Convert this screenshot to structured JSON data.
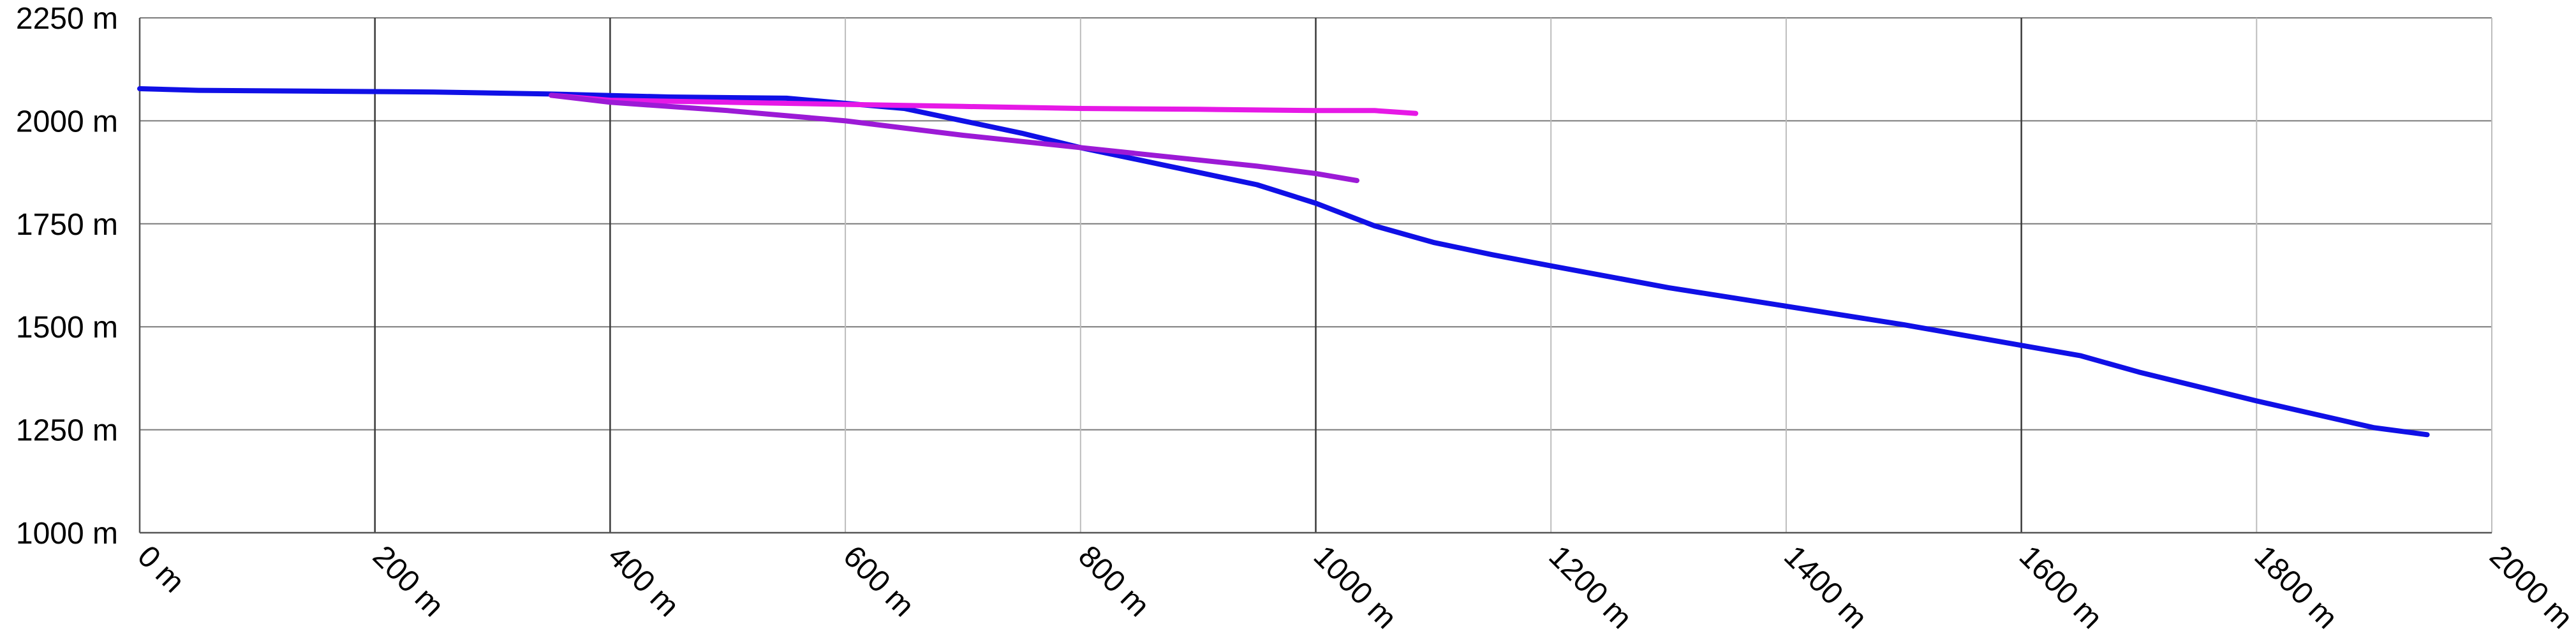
{
  "chart_data": {
    "type": "line",
    "title": "",
    "xlabel": "",
    "ylabel": "",
    "xlim": [
      0,
      2000
    ],
    "ylim": [
      1000,
      2250
    ],
    "x_ticks": [
      0,
      200,
      400,
      600,
      800,
      1000,
      1200,
      1400,
      1600,
      1800,
      2000
    ],
    "x_tick_labels": [
      "0 m",
      "200 m",
      "400 m",
      "600 m",
      "800 m",
      "1000 m",
      "1200 m",
      "1400 m",
      "1600 m",
      "1800 m",
      "2000 m"
    ],
    "y_ticks": [
      1000,
      1250,
      1500,
      1750,
      2000,
      2250
    ],
    "y_tick_labels": [
      "1000 m",
      "1250 m",
      "1500 m",
      "1750 m",
      "2000 m",
      "2250 m"
    ],
    "grid": true,
    "legend": "none",
    "series": [
      {
        "color": "#1010e6",
        "points": [
          [
            0,
            2078
          ],
          [
            50,
            2074
          ],
          [
            150,
            2072
          ],
          [
            250,
            2070
          ],
          [
            350,
            2065
          ],
          [
            450,
            2058
          ],
          [
            550,
            2055
          ],
          [
            650,
            2030
          ],
          [
            700,
            2000
          ],
          [
            750,
            1970
          ],
          [
            800,
            1935
          ],
          [
            850,
            1905
          ],
          [
            900,
            1875
          ],
          [
            950,
            1845
          ],
          [
            1000,
            1800
          ],
          [
            1050,
            1745
          ],
          [
            1100,
            1705
          ],
          [
            1150,
            1675
          ],
          [
            1200,
            1648
          ],
          [
            1300,
            1595
          ],
          [
            1400,
            1550
          ],
          [
            1500,
            1505
          ],
          [
            1600,
            1455
          ],
          [
            1650,
            1430
          ],
          [
            1700,
            1390
          ],
          [
            1800,
            1320
          ],
          [
            1900,
            1255
          ],
          [
            1945,
            1238
          ]
        ]
      },
      {
        "color": "#e619e6",
        "points": [
          [
            350,
            2062
          ],
          [
            400,
            2050
          ],
          [
            500,
            2045
          ],
          [
            600,
            2040
          ],
          [
            700,
            2035
          ],
          [
            800,
            2030
          ],
          [
            900,
            2028
          ],
          [
            1000,
            2025
          ],
          [
            1050,
            2025
          ],
          [
            1085,
            2018
          ]
        ]
      },
      {
        "color": "#9c1ad6",
        "points": [
          [
            350,
            2062
          ],
          [
            400,
            2045
          ],
          [
            500,
            2025
          ],
          [
            600,
            2000
          ],
          [
            700,
            1965
          ],
          [
            800,
            1935
          ],
          [
            900,
            1905
          ],
          [
            950,
            1890
          ],
          [
            1000,
            1872
          ],
          [
            1035,
            1855
          ]
        ]
      }
    ]
  }
}
